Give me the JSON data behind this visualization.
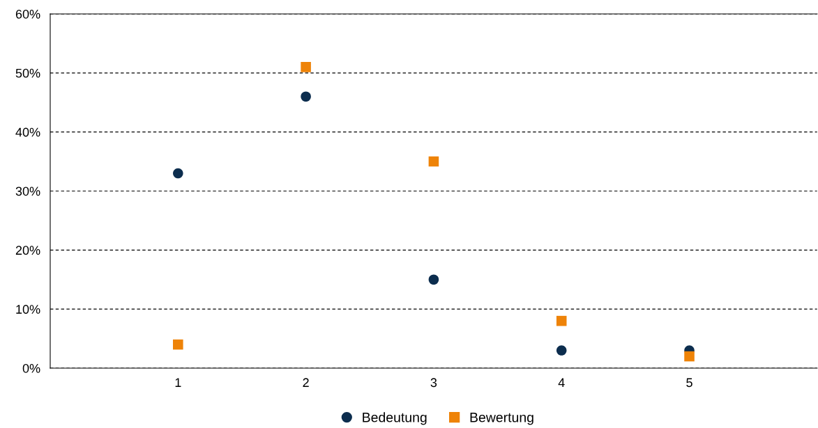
{
  "chart_data": {
    "type": "scatter",
    "x": [
      1,
      2,
      3,
      4,
      5
    ],
    "series": [
      {
        "name": "Bedeutung",
        "color": "#0c2d4e",
        "marker": "circle",
        "values": [
          33,
          46,
          15,
          3,
          3
        ]
      },
      {
        "name": "Bewertung",
        "color": "#ee8308",
        "marker": "square",
        "values": [
          4,
          51,
          35,
          8,
          2
        ]
      }
    ],
    "xlim": [
      0,
      6
    ],
    "xticks": [
      1,
      2,
      3,
      4,
      5
    ],
    "ylim": [
      0,
      60
    ],
    "yticks": [
      {
        "value": 0,
        "label": "0%"
      },
      {
        "value": 10,
        "label": "10%"
      },
      {
        "value": 20,
        "label": "20%"
      },
      {
        "value": 30,
        "label": "30%"
      },
      {
        "value": 40,
        "label": "40%"
      },
      {
        "value": 50,
        "label": "50%"
      },
      {
        "value": 60,
        "label": "60%"
      }
    ],
    "grid": "y",
    "legend": "bottom"
  }
}
